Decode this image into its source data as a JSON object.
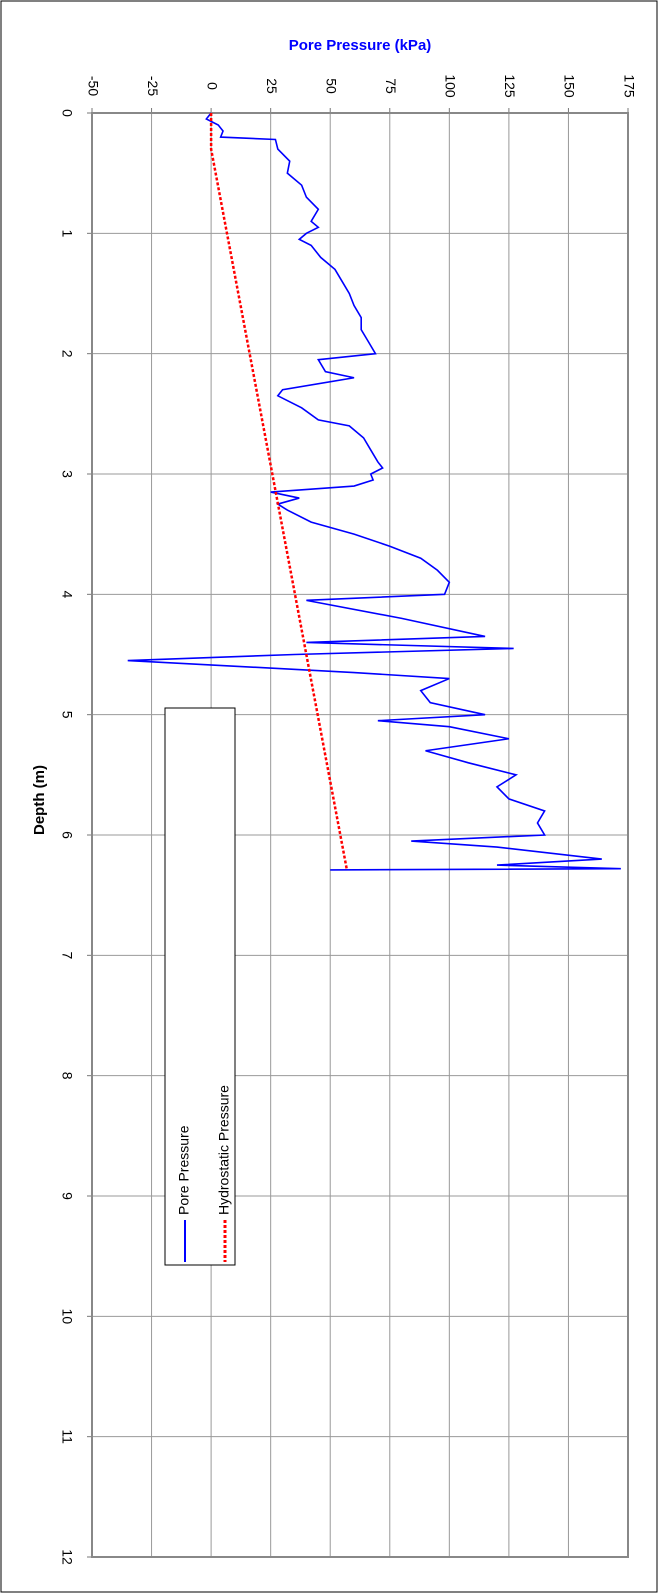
{
  "chart_data": {
    "type": "line",
    "y_label": "Pore Pressure (kPa)",
    "x_label": "Depth (m)",
    "xlim": [
      0,
      12
    ],
    "xticks": [
      0,
      1,
      2,
      3,
      4,
      5,
      6,
      7,
      8,
      9,
      10,
      11,
      12
    ],
    "ylim": [
      -50,
      175
    ],
    "yticks": [
      -50,
      -25,
      0,
      25,
      50,
      75,
      100,
      125,
      150,
      175
    ],
    "grid": true,
    "legend": "lower-left",
    "series": [
      {
        "name": "Pore Pressure",
        "color": "#0000ff",
        "dash": "solid",
        "x": [
          0.0,
          0.05,
          0.1,
          0.15,
          0.2,
          0.22,
          0.3,
          0.4,
          0.5,
          0.6,
          0.7,
          0.8,
          0.9,
          0.95,
          1.0,
          1.05,
          1.1,
          1.2,
          1.3,
          1.4,
          1.5,
          1.6,
          1.7,
          1.8,
          1.9,
          2.0,
          2.05,
          2.15,
          2.2,
          2.3,
          2.35,
          2.45,
          2.55,
          2.6,
          2.7,
          2.8,
          2.9,
          2.95,
          3.0,
          3.05,
          3.1,
          3.15,
          3.2,
          3.25,
          3.3,
          3.4,
          3.5,
          3.6,
          3.7,
          3.8,
          3.9,
          4.0,
          4.05,
          4.2,
          4.35,
          4.4,
          4.45,
          4.5,
          4.55,
          4.65,
          4.7,
          4.8,
          4.9,
          5.0,
          5.05,
          5.1,
          5.2,
          5.3,
          5.4,
          5.5,
          5.6,
          5.7,
          5.8,
          5.9,
          6.0,
          6.05,
          6.1,
          6.2,
          6.25,
          6.28,
          6.29
        ],
        "values": [
          0,
          -2,
          3,
          5,
          4,
          27,
          28,
          33,
          32,
          38,
          40,
          45,
          42,
          45,
          40,
          37,
          42,
          46,
          52,
          55,
          58,
          60,
          63,
          63,
          66,
          69,
          45,
          48,
          60,
          30,
          28,
          38,
          45,
          58,
          64,
          67,
          70,
          72,
          67,
          68,
          60,
          25,
          37,
          28,
          32,
          42,
          60,
          75,
          88,
          95,
          100,
          98,
          40,
          80,
          115,
          40,
          127,
          35,
          -35,
          60,
          100,
          88,
          92,
          115,
          70,
          100,
          125,
          90,
          108,
          128,
          120,
          125,
          140,
          137,
          140,
          84,
          120,
          164,
          120,
          172,
          50
        ]
      },
      {
        "name": "Hydrostatic Pressure",
        "color": "#ff0000",
        "dash": "dotted",
        "x": [
          0,
          0.3,
          6.29
        ],
        "values": [
          0,
          0,
          57
        ]
      }
    ]
  }
}
